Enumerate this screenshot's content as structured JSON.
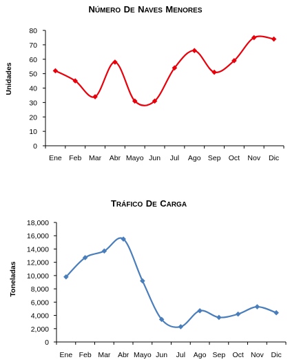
{
  "chart_data": [
    {
      "type": "line",
      "title": "Número de Naves Menores",
      "ylabel": "Unidades",
      "xlabel": "",
      "categories": [
        "Ene",
        "Feb",
        "Mar",
        "Abr",
        "Mayo",
        "Jun",
        "Jul",
        "Ago",
        "Sep",
        "Oct",
        "Nov",
        "Dic"
      ],
      "series": [
        {
          "values": [
            52,
            45,
            34,
            58,
            31,
            31,
            54,
            66,
            51,
            59,
            75,
            74
          ]
        }
      ],
      "ylim": [
        0,
        80
      ],
      "yticks": [
        "0",
        "10",
        "20",
        "30",
        "40",
        "50",
        "60",
        "70",
        "80"
      ],
      "color": "#e8000b",
      "marker": "diamond",
      "smooth": true,
      "grid": false
    },
    {
      "type": "line",
      "title": "Tráfico de Carga",
      "ylabel": "Toneladas",
      "xlabel": "",
      "categories": [
        "Ene",
        "Feb",
        "Mar",
        "Abr",
        "Mayo",
        "Jun",
        "Jul",
        "Ago",
        "Sep",
        "Oct",
        "Nov",
        "Dic"
      ],
      "series": [
        {
          "values": [
            9800,
            12700,
            13700,
            15500,
            9200,
            3400,
            2300,
            4700,
            3700,
            4200,
            5300,
            4400
          ]
        }
      ],
      "ylim": [
        0,
        18000
      ],
      "yticks": [
        "0",
        "2,000",
        "4,000",
        "6,000",
        "8,000",
        "10,000",
        "12,000",
        "14,000",
        "16,000",
        "18,000"
      ],
      "color": "#4a7ebb",
      "marker": "diamond",
      "smooth": true,
      "grid": false
    }
  ]
}
